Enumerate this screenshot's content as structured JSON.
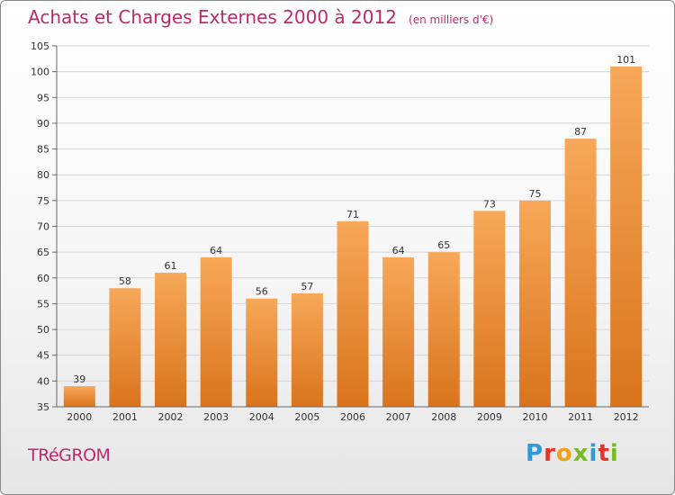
{
  "header": {
    "title": "Achats et Charges Externes 2000 à 2012",
    "subtitle": "(en milliers d'€)"
  },
  "footer": {
    "commune": "TRéGROM",
    "brand_letters": [
      "P",
      "r",
      "o",
      "x",
      "i",
      "t",
      "i"
    ],
    "brand_colors": [
      "#2e9ad8",
      "#e8332a",
      "#f2a21a",
      "#7ab929",
      "#2e9ad8",
      "#e8332a",
      "#7ab929"
    ]
  },
  "colors": {
    "bar_top": "#f7a85a",
    "bar_bottom": "#d9741c",
    "grid": "#d4d4d4",
    "axis": "#666666",
    "label": "#333333",
    "title": "#c0286a"
  },
  "chart_data": {
    "type": "bar",
    "title": "Achats et Charges Externes 2000 à 2012",
    "subtitle": "(en milliers d'€)",
    "categories": [
      "2000",
      "2001",
      "2002",
      "2003",
      "2004",
      "2005",
      "2006",
      "2007",
      "2008",
      "2009",
      "2010",
      "2011",
      "2012"
    ],
    "values": [
      39,
      58,
      61,
      64,
      56,
      57,
      71,
      64,
      65,
      73,
      75,
      87,
      101
    ],
    "ylim": [
      35,
      105
    ],
    "yticks": [
      35,
      40,
      45,
      50,
      55,
      60,
      65,
      70,
      75,
      80,
      85,
      90,
      95,
      100,
      105
    ],
    "xlabel": "",
    "ylabel": "",
    "grid": true,
    "data_labels": true
  }
}
